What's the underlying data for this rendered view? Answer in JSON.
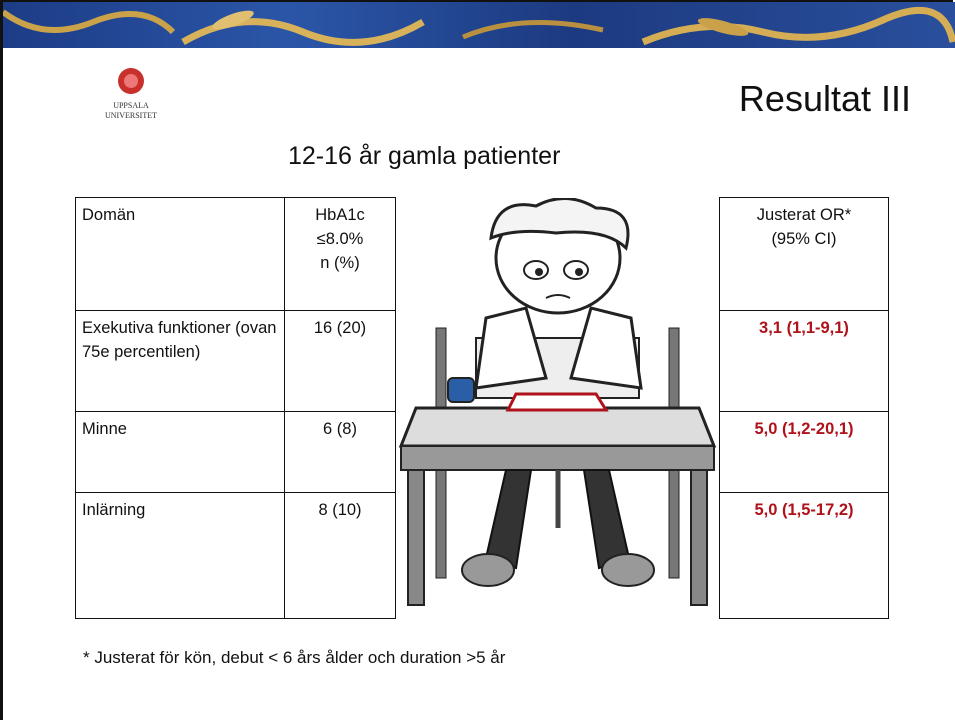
{
  "logo": {
    "line1": "UPPSALA",
    "line2": "UNIVERSITET"
  },
  "title": "Resultat III",
  "subtitle": "12-16 år gamla patienter",
  "table": {
    "header": [
      "Domän",
      [
        "HbA1c",
        "≤8.0%",
        "n (%)"
      ],
      [
        "Justerat OR*",
        "(95% CI)"
      ]
    ],
    "rows": [
      [
        "Exekutiva funktioner (ovan 75e percentilen)",
        "16 (20)",
        "3,1 (1,1-9,1)"
      ],
      [
        "Minne",
        "6 (8)",
        "5,0 (1,2-20,1)"
      ],
      [
        "Inlärning",
        "8 (10)",
        "5,0 (1,5-17,2)"
      ]
    ]
  },
  "footnote": "* Justerat för kön, debut < 6 års ålder och duration >5 år"
}
